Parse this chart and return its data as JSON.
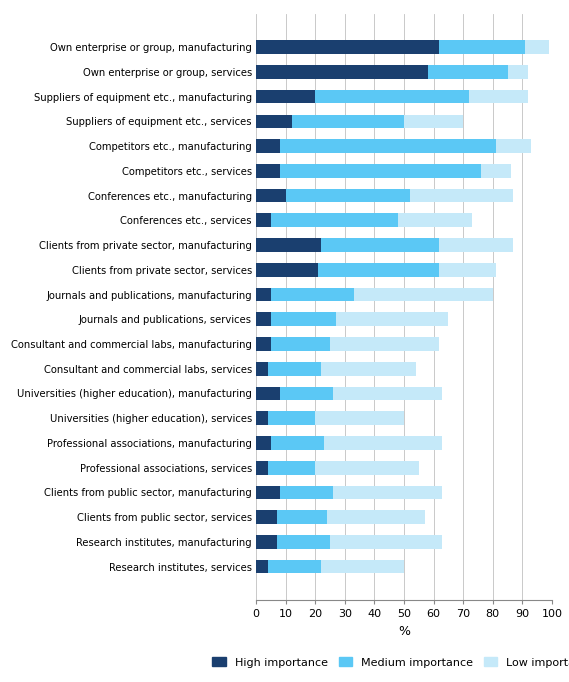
{
  "categories": [
    "Own enterprise or group, manufacturing",
    "Own enterprise or group, services",
    "Suppliers of equipment etc., manufacturing",
    "Suppliers of equipment etc., services",
    "Competitors etc., manufacturing",
    "Competitors etc., services",
    "Conferences etc., manufacturing",
    "Conferences etc., services",
    "Clients from private sector, manufacturing",
    "Clients from private sector, services",
    "Journals and publications, manufacturing",
    "Journals and publications, services",
    "Consultant and commercial labs, manufacturing",
    "Consultant and commercial labs, services",
    "Universities (higher education), manufacturing",
    "Universities (higher education), services",
    "Professional associations, manufacturing",
    "Professional associations, services",
    "Clients from public sector, manufacturing",
    "Clients from public sector, services",
    "Research institutes, manufacturing",
    "Research institutes, services"
  ],
  "high": [
    62,
    58,
    20,
    12,
    8,
    8,
    10,
    5,
    22,
    21,
    5,
    5,
    5,
    4,
    8,
    4,
    5,
    4,
    8,
    7,
    7,
    4
  ],
  "medium": [
    29,
    27,
    52,
    38,
    73,
    68,
    42,
    43,
    40,
    41,
    28,
    22,
    20,
    18,
    18,
    16,
    18,
    16,
    18,
    17,
    18,
    18
  ],
  "low": [
    8,
    7,
    20,
    20,
    12,
    10,
    35,
    25,
    25,
    19,
    47,
    38,
    37,
    32,
    37,
    30,
    40,
    35,
    37,
    33,
    38,
    28
  ],
  "color_high": "#1a3f6f",
  "color_medium": "#5bc8f5",
  "color_low": "#c5e9f9",
  "xlabel": "%",
  "xlim": [
    0,
    100
  ],
  "xticks": [
    0,
    10,
    20,
    30,
    40,
    50,
    60,
    70,
    80,
    90,
    100
  ],
  "legend_labels": [
    "High importance",
    "Medium importance",
    "Low importance"
  ],
  "figsize": [
    5.69,
    6.82
  ],
  "dpi": 100,
  "bar_height": 0.55,
  "label_fontsize": 7.2,
  "tick_fontsize": 8
}
